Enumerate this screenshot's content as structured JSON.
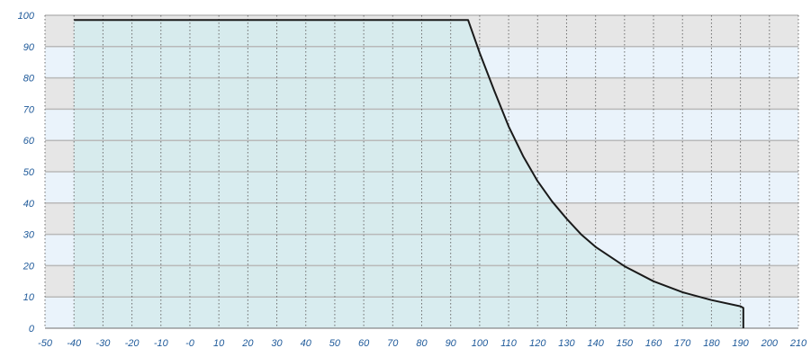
{
  "chart_data": {
    "type": "area",
    "title": "",
    "xlabel": "",
    "ylabel": "",
    "xlim": [
      -50,
      210
    ],
    "ylim": [
      0,
      100
    ],
    "x_ticks": [
      -50,
      -40,
      -30,
      -20,
      -10,
      0,
      10,
      20,
      30,
      40,
      50,
      60,
      70,
      80,
      90,
      100,
      110,
      120,
      130,
      140,
      150,
      160,
      170,
      180,
      190,
      200,
      210
    ],
    "x_tick_labels": [
      "-50",
      "-40",
      "-30",
      "-20",
      "-10",
      "-0",
      "10",
      "20",
      "30",
      "40",
      "50",
      "60",
      "70",
      "80",
      "90",
      "100",
      "110",
      "120",
      "130",
      "140",
      "150",
      "160",
      "170",
      "180",
      "190",
      "200",
      "210"
    ],
    "y_ticks": [
      0,
      10,
      20,
      30,
      40,
      50,
      60,
      70,
      80,
      90,
      100
    ],
    "y_tick_labels": [
      "0",
      "10",
      "20",
      "30",
      "40",
      "50",
      "60",
      "70",
      "80",
      "90",
      "100"
    ],
    "grid": true,
    "series": [
      {
        "x": [
          -40,
          96,
          100,
          105,
          110,
          115,
          120,
          125,
          130,
          135,
          140,
          150,
          160,
          170,
          180,
          190,
          191,
          191
        ],
        "y": [
          98.5,
          98.5,
          88,
          76,
          64.5,
          55,
          47,
          40.5,
          35,
          30,
          26,
          19.8,
          15,
          11.5,
          9,
          7,
          6.5,
          0
        ]
      }
    ],
    "colors": {
      "line": "#1a1a1a",
      "fill": "#d6ebee",
      "band_dark": "#e6e6e6",
      "band_light": "#eaf3fb",
      "grid_h": "#b9b9b9",
      "grid_v": "#6d6d6d",
      "tick_text": "#1f5a9a"
    }
  }
}
